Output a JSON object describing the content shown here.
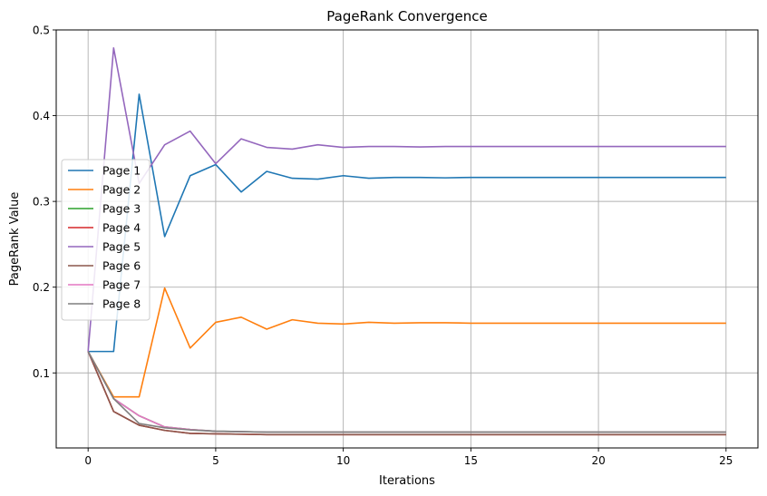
{
  "chart_data": {
    "type": "line",
    "title": "PageRank Convergence",
    "xlabel": "Iterations",
    "ylabel": "PageRank Value",
    "xlim": [
      -1.25,
      26.25
    ],
    "ylim": [
      0.0125,
      0.5
    ],
    "xticks": [
      0,
      5,
      10,
      15,
      20,
      25
    ],
    "yticks": [
      0.1,
      0.2,
      0.3,
      0.4,
      0.5
    ],
    "xtick_labels": [
      "0",
      "5",
      "10",
      "15",
      "20",
      "25"
    ],
    "ytick_labels": [
      "0.1",
      "0.2",
      "0.3",
      "0.4",
      "0.5"
    ],
    "grid": true,
    "legend_position": "center-left",
    "x": [
      0,
      1,
      2,
      3,
      4,
      5,
      6,
      7,
      8,
      9,
      10,
      11,
      12,
      13,
      14,
      15,
      16,
      17,
      18,
      19,
      20,
      21,
      22,
      23,
      24,
      25
    ],
    "series": [
      {
        "name": "Page 1",
        "color": "#1f77b4",
        "values": [
          0.125,
          0.125,
          0.425,
          0.259,
          0.33,
          0.343,
          0.311,
          0.335,
          0.327,
          0.326,
          0.33,
          0.327,
          0.328,
          0.328,
          0.3275,
          0.328,
          0.328,
          0.328,
          0.328,
          0.328,
          0.328,
          0.328,
          0.328,
          0.328,
          0.328,
          0.328
        ]
      },
      {
        "name": "Page 2",
        "color": "#ff7f0e",
        "values": [
          0.125,
          0.072,
          0.072,
          0.199,
          0.129,
          0.159,
          0.165,
          0.151,
          0.162,
          0.158,
          0.157,
          0.159,
          0.158,
          0.1585,
          0.1585,
          0.158,
          0.158,
          0.158,
          0.158,
          0.158,
          0.158,
          0.158,
          0.158,
          0.158,
          0.158,
          0.158
        ]
      },
      {
        "name": "Page 3",
        "color": "#2ca02c",
        "values": [
          0.125,
          0.07,
          0.05,
          0.037,
          0.034,
          0.032,
          0.0315,
          0.031,
          0.031,
          0.031,
          0.031,
          0.031,
          0.031,
          0.031,
          0.031,
          0.031,
          0.031,
          0.031,
          0.031,
          0.031,
          0.031,
          0.031,
          0.031,
          0.031,
          0.031,
          0.031
        ]
      },
      {
        "name": "Page 4",
        "color": "#d62728",
        "values": [
          0.125,
          0.055,
          0.039,
          0.033,
          0.0295,
          0.029,
          0.0285,
          0.028,
          0.028,
          0.028,
          0.028,
          0.028,
          0.028,
          0.028,
          0.028,
          0.028,
          0.028,
          0.028,
          0.028,
          0.028,
          0.028,
          0.028,
          0.028,
          0.028,
          0.028,
          0.028
        ]
      },
      {
        "name": "Page 5",
        "color": "#9467bd",
        "values": [
          0.125,
          0.479,
          0.321,
          0.366,
          0.382,
          0.344,
          0.373,
          0.363,
          0.361,
          0.366,
          0.363,
          0.364,
          0.364,
          0.3635,
          0.364,
          0.364,
          0.364,
          0.364,
          0.364,
          0.364,
          0.364,
          0.364,
          0.364,
          0.364,
          0.364,
          0.364
        ]
      },
      {
        "name": "Page 6",
        "color": "#8c564b",
        "values": [
          0.125,
          0.055,
          0.039,
          0.033,
          0.0295,
          0.029,
          0.0285,
          0.028,
          0.028,
          0.028,
          0.028,
          0.028,
          0.028,
          0.028,
          0.028,
          0.028,
          0.028,
          0.028,
          0.028,
          0.028,
          0.028,
          0.028,
          0.028,
          0.028,
          0.028,
          0.028
        ]
      },
      {
        "name": "Page 7",
        "color": "#e377c2",
        "values": [
          0.125,
          0.07,
          0.05,
          0.037,
          0.034,
          0.032,
          0.0315,
          0.031,
          0.031,
          0.031,
          0.031,
          0.031,
          0.031,
          0.031,
          0.031,
          0.031,
          0.031,
          0.031,
          0.031,
          0.031,
          0.031,
          0.031,
          0.031,
          0.031,
          0.031,
          0.031
        ]
      },
      {
        "name": "Page 8",
        "color": "#7f7f7f",
        "values": [
          0.125,
          0.07,
          0.041,
          0.036,
          0.0335,
          0.032,
          0.0315,
          0.031,
          0.031,
          0.031,
          0.031,
          0.031,
          0.031,
          0.031,
          0.031,
          0.031,
          0.031,
          0.031,
          0.031,
          0.031,
          0.031,
          0.031,
          0.031,
          0.031,
          0.031,
          0.031
        ]
      }
    ]
  }
}
